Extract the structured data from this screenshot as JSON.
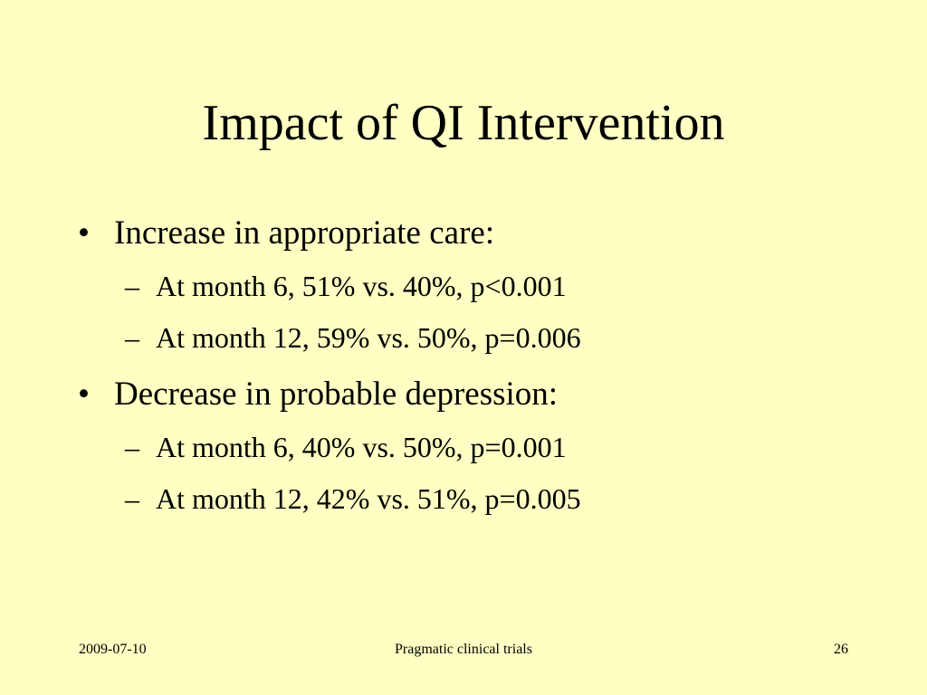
{
  "slide": {
    "title": "Impact of QI Intervention",
    "bullets": [
      {
        "text": "Increase in appropriate care:",
        "subs": [
          "At month 6, 51% vs. 40%, p<0.001",
          "At month 12, 59% vs. 50%, p=0.006"
        ]
      },
      {
        "text": "Decrease in probable depression:",
        "subs": [
          "At month 6, 40% vs. 50%, p=0.001",
          "At month 12, 42% vs. 51%, p=0.005"
        ]
      }
    ]
  },
  "footer": {
    "date": "2009-07-10",
    "center": "Pragmatic clinical trials",
    "page_number": "26"
  },
  "markers": {
    "bullet": "•",
    "sub": "–"
  },
  "colors": {
    "background": "#ffffc3",
    "text": "#000000"
  }
}
